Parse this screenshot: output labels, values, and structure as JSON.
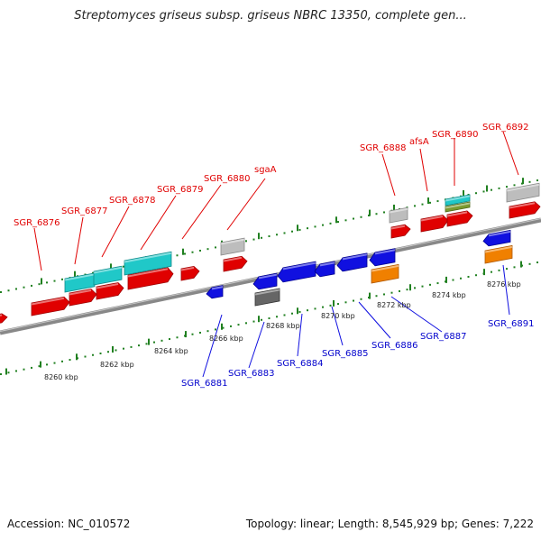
{
  "title": "Streptomyces griseus subsp. griseus NBRC 13350, complete gen...",
  "footer": {
    "accession": "Accession: NC_010572",
    "summary": "Topology: linear; Length: 8,545,929 bp; Genes: 7,222"
  },
  "axis_ticks": [
    {
      "label": "8260 kbp"
    },
    {
      "label": "8262 kbp"
    },
    {
      "label": "8264 kbp"
    },
    {
      "label": "8266 kbp"
    },
    {
      "label": "8268 kbp"
    },
    {
      "label": "8270 kbp"
    },
    {
      "label": "8272 kbp"
    },
    {
      "label": "8274 kbp"
    },
    {
      "label": "8276 kbp"
    }
  ],
  "genes_upper": [
    {
      "name": "SGR_6876"
    },
    {
      "name": "SGR_6877"
    },
    {
      "name": "SGR_6878"
    },
    {
      "name": "SGR_6879"
    },
    {
      "name": "SGR_6880"
    },
    {
      "name": "sgaA"
    },
    {
      "name": "SGR_6888"
    },
    {
      "name": "afsA"
    },
    {
      "name": "SGR_6890"
    },
    {
      "name": "SGR_6892"
    }
  ],
  "genes_lower": [
    {
      "name": "SGR_6881"
    },
    {
      "name": "SGR_6883"
    },
    {
      "name": "SGR_6884"
    },
    {
      "name": "SGR_6885"
    },
    {
      "name": "SGR_6886"
    },
    {
      "name": "SGR_6887"
    },
    {
      "name": "SGR_6891"
    }
  ],
  "colors": {
    "forward": "#e00000",
    "reverse": "#1010e0",
    "cyan": "#20c8c8",
    "gray": "#bdbdbd",
    "dark_gray": "#666666",
    "orange": "#f08000",
    "olive": "#7a9a30",
    "backbone": "#888888",
    "tick_green": "#208020"
  }
}
